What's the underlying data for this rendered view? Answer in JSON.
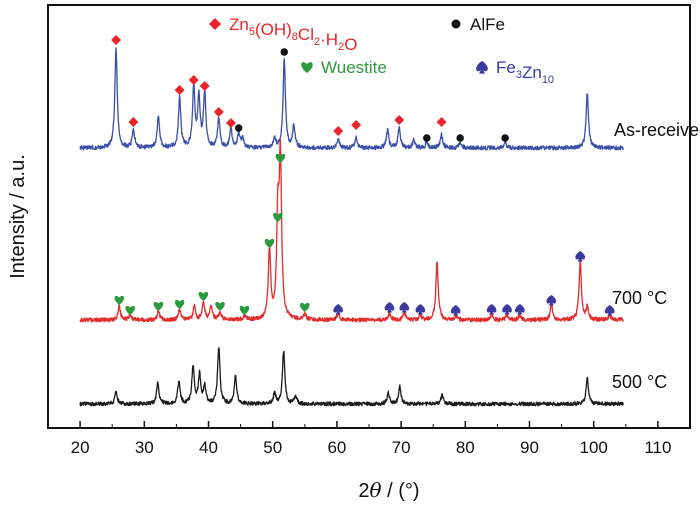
{
  "chart_data": {
    "type": "line",
    "xlabel_prefix": "2",
    "xlabel_symbol": "θ",
    "xlabel_unit": " / (°)",
    "ylabel": "Intensity / a.u.",
    "xlim": [
      15,
      115
    ],
    "xticks": [
      20,
      30,
      40,
      50,
      60,
      70,
      80,
      90,
      100,
      110
    ],
    "legend": [
      {
        "marker": "diamond",
        "color": "#e8262a",
        "base": "Zn",
        "s1": "5",
        "mid1": "(OH)",
        "s2": "8",
        "mid2": "Cl",
        "s3": "2",
        "tail": "·H",
        "s4": "2",
        "end": "O"
      },
      {
        "marker": "circle",
        "color": "#111111",
        "text": "AlFe"
      },
      {
        "marker": "heart",
        "color": "#2e9a3e",
        "text": "Wuestite"
      },
      {
        "marker": "spade",
        "color": "#3a3aa0",
        "base": "Fe",
        "s1": "3",
        "mid1": "Zn",
        "s2": "10"
      }
    ],
    "series": [
      {
        "label": "As-received",
        "color": "#3a4fa8",
        "baseline": 0,
        "peaks": [
          [
            25.6,
            100
          ],
          [
            28.3,
            18
          ],
          [
            32.2,
            32
          ],
          [
            35.5,
            50
          ],
          [
            37.7,
            60
          ],
          [
            38.5,
            50
          ],
          [
            39.4,
            54
          ],
          [
            41.6,
            30
          ],
          [
            43.5,
            18
          ],
          [
            44.7,
            15
          ],
          [
            45.3,
            9
          ],
          [
            50.3,
            9
          ],
          [
            51.8,
            88
          ],
          [
            53.3,
            22
          ],
          [
            60.2,
            9
          ],
          [
            63.0,
            10
          ],
          [
            67.9,
            18
          ],
          [
            69.7,
            20
          ],
          [
            72.0,
            8
          ],
          [
            74.0,
            6
          ],
          [
            76.3,
            13
          ],
          [
            79.2,
            6
          ],
          [
            86.2,
            5
          ],
          [
            99.0,
            55
          ]
        ],
        "markers": [
          {
            "type": "diamond",
            "x": 25.6,
            "y": 108
          },
          {
            "type": "diamond",
            "x": 28.3,
            "y": 26
          },
          {
            "type": "diamond",
            "x": 35.5,
            "y": 58
          },
          {
            "type": "diamond",
            "x": 37.7,
            "y": 68
          },
          {
            "type": "diamond",
            "x": 39.4,
            "y": 62
          },
          {
            "type": "diamond",
            "x": 41.6,
            "y": 36
          },
          {
            "type": "diamond",
            "x": 43.5,
            "y": 25
          },
          {
            "type": "circle",
            "x": 44.7,
            "y": 20
          },
          {
            "type": "circle",
            "x": 51.8,
            "y": 96
          },
          {
            "type": "diamond",
            "x": 60.2,
            "y": 17
          },
          {
            "type": "diamond",
            "x": 63.0,
            "y": 23
          },
          {
            "type": "diamond",
            "x": 69.7,
            "y": 28
          },
          {
            "type": "circle",
            "x": 74.0,
            "y": 10
          },
          {
            "type": "diamond",
            "x": 76.3,
            "y": 26
          },
          {
            "type": "circle",
            "x": 79.2,
            "y": 10
          },
          {
            "type": "circle",
            "x": 86.2,
            "y": 10
          }
        ]
      },
      {
        "label": "700 °C",
        "color": "#e32b2b",
        "baseline": 0,
        "peaks": [
          [
            26.1,
            14
          ],
          [
            27.8,
            5
          ],
          [
            32.2,
            9
          ],
          [
            35.5,
            10
          ],
          [
            37.8,
            13
          ],
          [
            39.2,
            18
          ],
          [
            40.4,
            14
          ],
          [
            41.8,
            8
          ],
          [
            45.6,
            4
          ],
          [
            49.5,
            70
          ],
          [
            50.8,
            96
          ],
          [
            51.2,
            155
          ],
          [
            55.0,
            6
          ],
          [
            60.2,
            6
          ],
          [
            68.2,
            7
          ],
          [
            70.5,
            7
          ],
          [
            73.0,
            5
          ],
          [
            75.6,
            58
          ],
          [
            78.5,
            4
          ],
          [
            84.1,
            5
          ],
          [
            86.5,
            5
          ],
          [
            88.5,
            5
          ],
          [
            93.4,
            15
          ],
          [
            97.9,
            58
          ],
          [
            99.0,
            12
          ],
          [
            102.5,
            5
          ]
        ],
        "markers": [
          {
            "type": "heart",
            "x": 26.1,
            "y": 20
          },
          {
            "type": "heart",
            "x": 27.8,
            "y": 10
          },
          {
            "type": "heart",
            "x": 32.2,
            "y": 14
          },
          {
            "type": "heart",
            "x": 35.5,
            "y": 16
          },
          {
            "type": "heart",
            "x": 39.2,
            "y": 24
          },
          {
            "type": "heart",
            "x": 41.8,
            "y": 14
          },
          {
            "type": "heart",
            "x": 45.6,
            "y": 10
          },
          {
            "type": "heart",
            "x": 49.5,
            "y": 77
          },
          {
            "type": "heart",
            "x": 50.8,
            "y": 103
          },
          {
            "type": "heart",
            "x": 51.2,
            "y": 162
          },
          {
            "type": "heart",
            "x": 55.0,
            "y": 13
          },
          {
            "type": "spade",
            "x": 60.2,
            "y": 11
          },
          {
            "type": "spade",
            "x": 68.2,
            "y": 13
          },
          {
            "type": "spade",
            "x": 70.5,
            "y": 13
          },
          {
            "type": "spade",
            "x": 73.0,
            "y": 11
          },
          {
            "type": "spade",
            "x": 78.5,
            "y": 10
          },
          {
            "type": "spade",
            "x": 84.1,
            "y": 11
          },
          {
            "type": "spade",
            "x": 86.5,
            "y": 11
          },
          {
            "type": "spade",
            "x": 88.5,
            "y": 11
          },
          {
            "type": "spade",
            "x": 93.4,
            "y": 20
          },
          {
            "type": "spade",
            "x": 97.9,
            "y": 64
          },
          {
            "type": "spade",
            "x": 102.5,
            "y": 10
          }
        ]
      },
      {
        "label": "500 °C",
        "color": "#1a1a1a",
        "baseline": 0,
        "peaks": [
          [
            25.6,
            12
          ],
          [
            32.1,
            22
          ],
          [
            35.4,
            25
          ],
          [
            37.6,
            40
          ],
          [
            38.6,
            30
          ],
          [
            39.4,
            18
          ],
          [
            41.6,
            60
          ],
          [
            44.2,
            30
          ],
          [
            50.3,
            12
          ],
          [
            51.7,
            56
          ],
          [
            53.6,
            8
          ],
          [
            68.0,
            12
          ],
          [
            69.8,
            18
          ],
          [
            76.4,
            10
          ],
          [
            99.0,
            28
          ]
        ],
        "markers": []
      }
    ]
  }
}
